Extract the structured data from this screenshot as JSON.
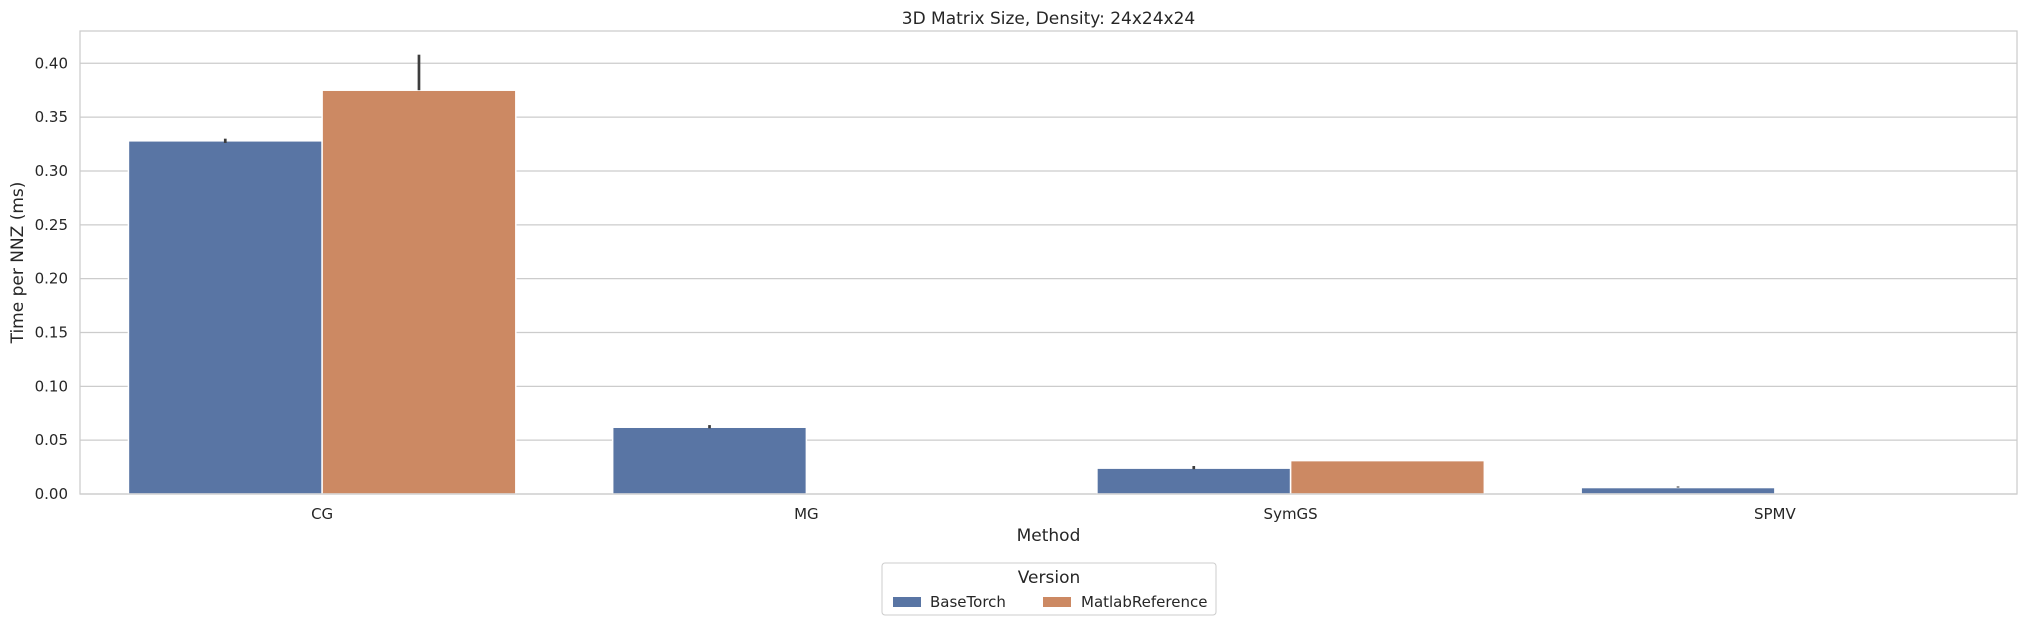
{
  "chart_data": {
    "type": "bar",
    "title": "3D Matrix Size, Density: 24x24x24",
    "xlabel": "Method",
    "ylabel": "Time per NNZ (ms)",
    "categories": [
      "CG",
      "MG",
      "SymGS",
      "SPMV"
    ],
    "ylim": [
      0,
      0.43
    ],
    "yticks": [
      "0.00",
      "0.05",
      "0.10",
      "0.15",
      "0.20",
      "0.25",
      "0.30",
      "0.35",
      "0.40"
    ],
    "grid": true,
    "legend": {
      "title": "Version",
      "placement": "bottom-center"
    },
    "series": [
      {
        "name": "BaseTorch",
        "color": "#5975a4",
        "values": [
          0.328,
          0.062,
          0.024,
          0.006
        ],
        "error_low": [
          0.326,
          0.061,
          0.023,
          0.006
        ],
        "error_high": [
          0.33,
          0.064,
          0.026,
          0.007
        ]
      },
      {
        "name": "MatlabReference",
        "color": "#cc8963",
        "values": [
          0.375,
          null,
          0.031,
          null
        ],
        "error_low": [
          0.375,
          null,
          0.031,
          null
        ],
        "error_high": [
          0.408,
          null,
          0.031,
          null
        ]
      }
    ]
  }
}
